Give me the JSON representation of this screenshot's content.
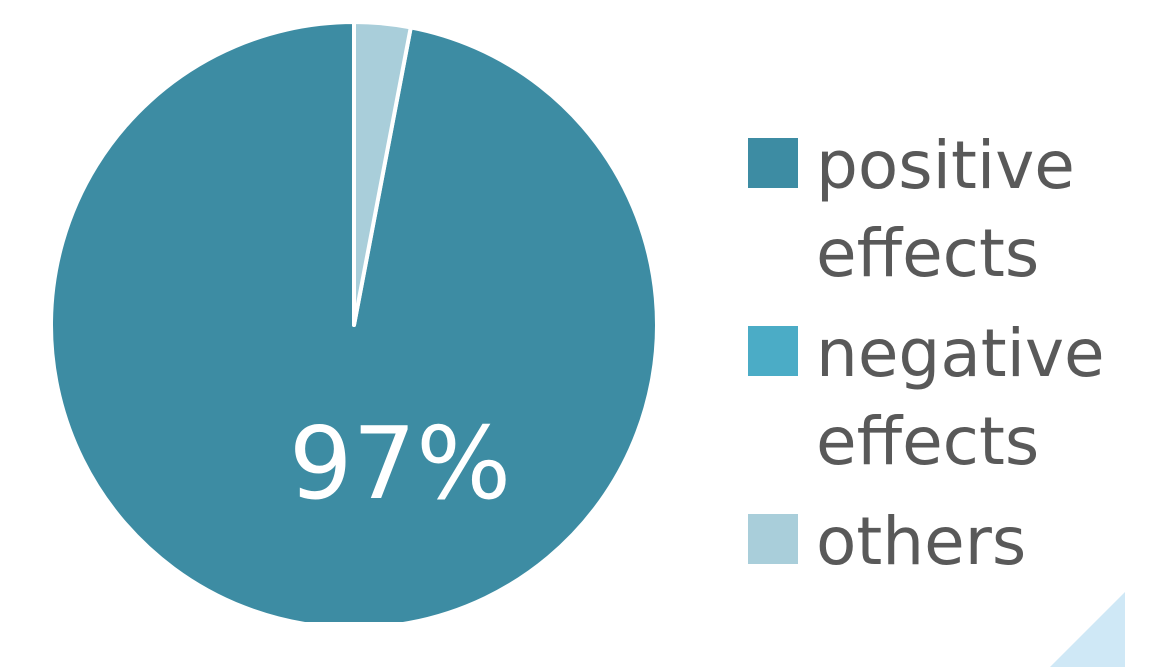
{
  "chart_data": {
    "type": "pie",
    "slices": [
      {
        "label": "positive effects",
        "value": 97,
        "color": "#3d8ca3"
      },
      {
        "label": "negative effects",
        "value": 0,
        "color": "#4bacc6"
      },
      {
        "label": "others",
        "value": 3,
        "color": "#a9ceda"
      }
    ],
    "data_labels": [
      "97%"
    ],
    "legend_position": "right",
    "title": ""
  }
}
